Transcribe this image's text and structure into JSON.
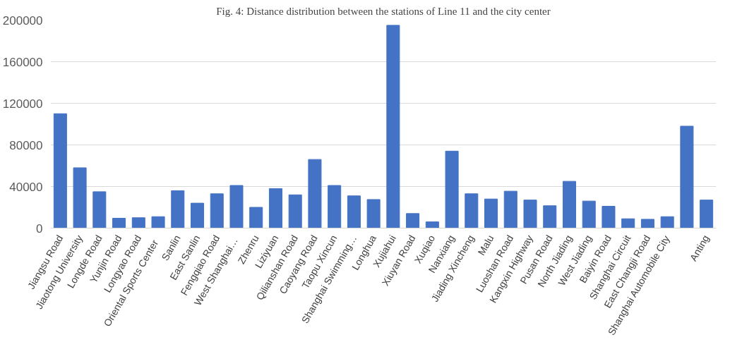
{
  "chart_data": {
    "type": "bar",
    "title": "Fig. 4: Distance distribution between the stations of Line 11 and the city center",
    "categories": [
      "Jiangsu Road",
      "Jiaotong University",
      "Longde Road",
      "Yunjin Road",
      "Longyao Road",
      "Oriental  Sports  Center",
      "Sanlin",
      "East Sanlin",
      "Fengqiao Road",
      "West  Shanghai…",
      "Zhenru",
      "Liziyuan",
      "Qilianshan Road",
      "Caoyang Road",
      "Taopu Xincun",
      "Shanghai Swimming…",
      "Longhua",
      "Xujiahui",
      "Xiuyan Road",
      "Xuqiao",
      "Nanxiang",
      "Jiading Xincheng",
      "Malu",
      "Luoshan Road",
      "Kangxin Highway",
      "Pusan Road",
      "North Jiading",
      "West Jiading",
      "Baiyin Road",
      "Shanghai Circuit",
      "East Changji Road",
      "Shanghai Automobile City",
      null,
      "Anting"
    ],
    "values": [
      110000,
      58000,
      35000,
      9500,
      10000,
      11000,
      36000,
      24000,
      33000,
      41000,
      20000,
      38000,
      32000,
      66000,
      41000,
      31000,
      27500,
      195000,
      14000,
      6000,
      74000,
      33000,
      28000,
      35500,
      27000,
      21500,
      45000,
      26000,
      21000,
      9000,
      8500,
      11000,
      98000,
      27000
    ],
    "color": "#4472c4",
    "ylim": [
      0,
      200000
    ],
    "yticks": [
      0,
      40000,
      80000,
      120000,
      160000,
      200000
    ],
    "grid": "y"
  }
}
